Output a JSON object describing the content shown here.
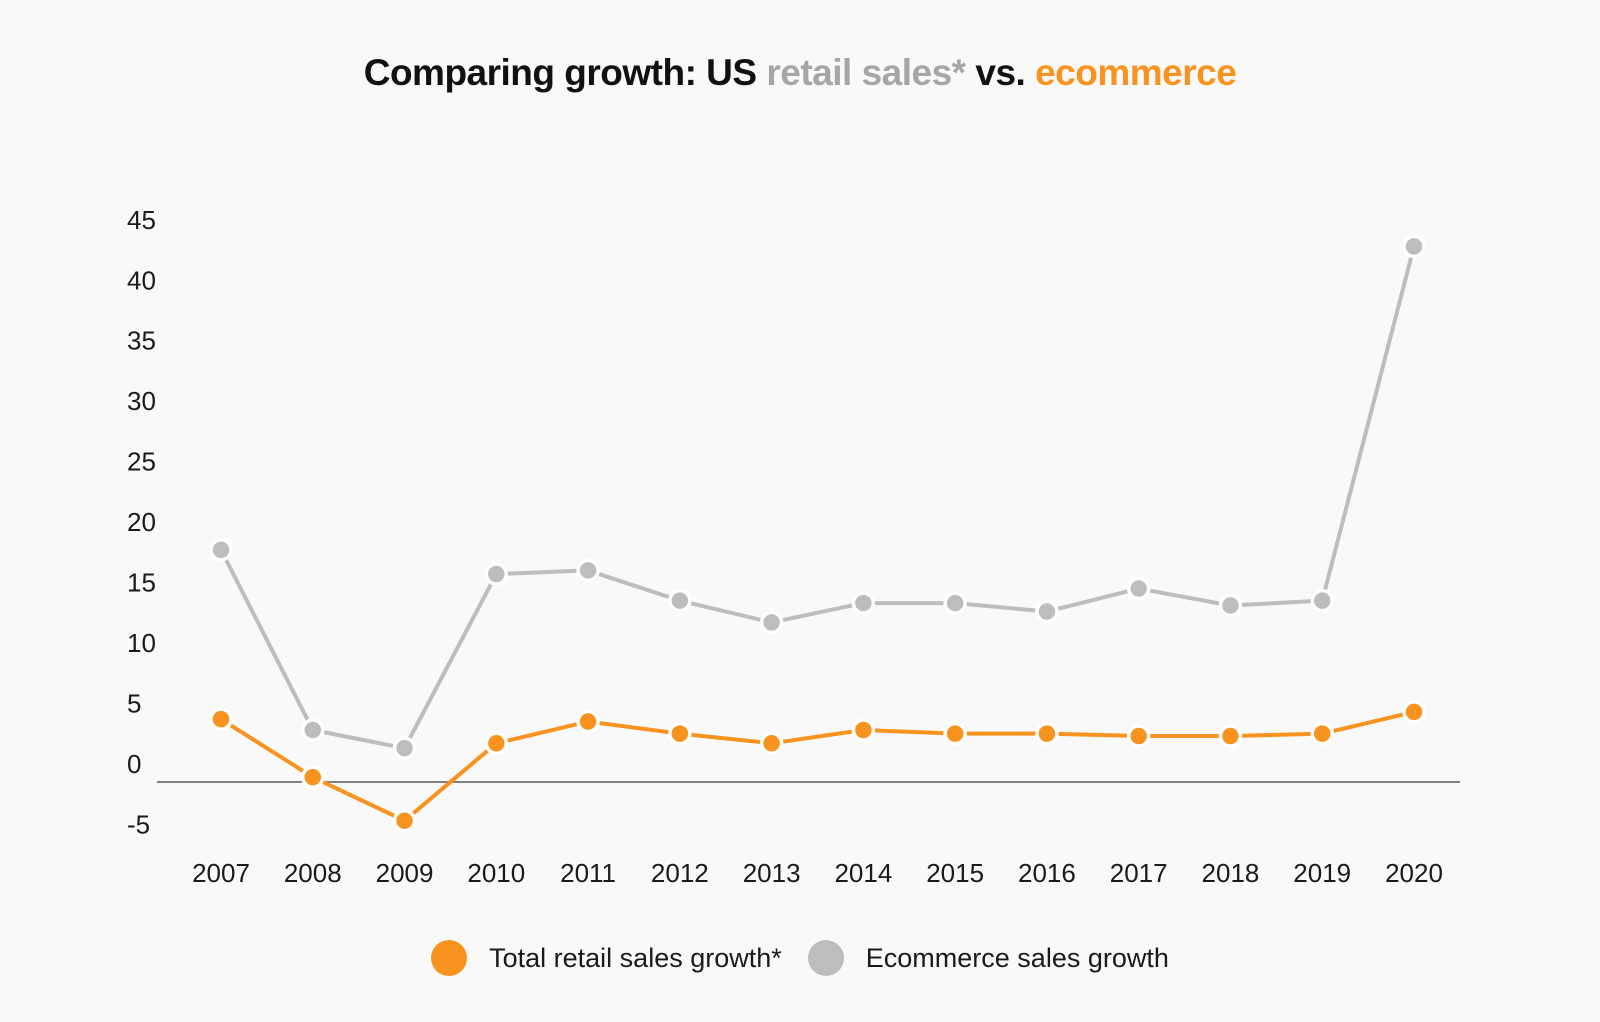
{
  "title": {
    "prefix": "Comparing growth: US ",
    "retail": "retail sales*",
    "middle": " vs. ",
    "ecommerce": "ecommerce"
  },
  "colors": {
    "retail": "#f7931e",
    "ecommerce": "#bdbdbd",
    "title_retail": "#a6a6a6",
    "title_ecommerce": "#f7931e",
    "baseline": "#808080",
    "background": "#f9f9f9"
  },
  "legend": [
    {
      "label": "Total retail sales growth*",
      "color": "#f7931e"
    },
    {
      "label": "Ecommerce sales growth",
      "color": "#bdbdbd"
    }
  ],
  "chart_data": {
    "type": "line",
    "title": "Comparing growth: US retail sales* vs. ecommerce",
    "xlabel": "",
    "ylabel": "",
    "x": [
      "2007",
      "2008",
      "2009",
      "2010",
      "2011",
      "2012",
      "2013",
      "2014",
      "2015",
      "2016",
      "2017",
      "2018",
      "2019",
      "2020"
    ],
    "yticks": [
      -5,
      0,
      5,
      10,
      15,
      20,
      25,
      30,
      35,
      40,
      45
    ],
    "ylim": [
      -5,
      45
    ],
    "grid": false,
    "legend_position": "bottom",
    "series": [
      {
        "name": "Total retail sales growth*",
        "color": "#f7931e",
        "values": [
          5.2,
          0.4,
          -3.2,
          3.2,
          5.0,
          4.0,
          3.2,
          4.3,
          4.0,
          4.0,
          3.8,
          3.8,
          4.0,
          5.8
        ]
      },
      {
        "name": "Ecommerce sales growth",
        "color": "#bdbdbd",
        "values": [
          19.2,
          4.3,
          2.8,
          17.2,
          17.5,
          15.0,
          13.2,
          14.8,
          14.8,
          14.1,
          16.0,
          14.6,
          15.0,
          44.3
        ]
      }
    ]
  }
}
